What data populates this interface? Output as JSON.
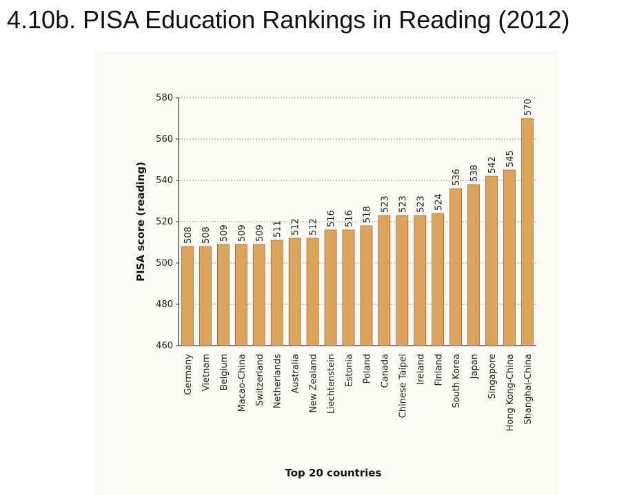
{
  "title": "4.10b. PISA Education Rankings in Reading (2012)",
  "colors": {
    "bar": "#dca35a",
    "bar_stroke": "#7a5a30",
    "panel": "#fbfaf6",
    "axis": "#333333",
    "grid": "#9a9a9a"
  },
  "chart_data": {
    "type": "bar",
    "xlabel": "Top 20 countries",
    "ylabel": "PISA score (reading)",
    "ylim": [
      460,
      580
    ],
    "yticks": [
      460,
      480,
      500,
      520,
      540,
      560,
      580
    ],
    "grid": true,
    "categories": [
      "Germany",
      "Vietnam",
      "Belgium",
      "Macao-China",
      "Switzerland",
      "Netherlands",
      "Australia",
      "New Zealand",
      "Liechtenstein",
      "Estonia",
      "Poland",
      "Canada",
      "Chinese Taipei",
      "Ireland",
      "Finland",
      "South Korea",
      "Japan",
      "Singapore",
      "Hong Kong-China",
      "Shanghai-China"
    ],
    "values": [
      508,
      508,
      509,
      509,
      509,
      511,
      512,
      512,
      516,
      516,
      518,
      523,
      523,
      523,
      524,
      536,
      538,
      542,
      545,
      570
    ]
  }
}
